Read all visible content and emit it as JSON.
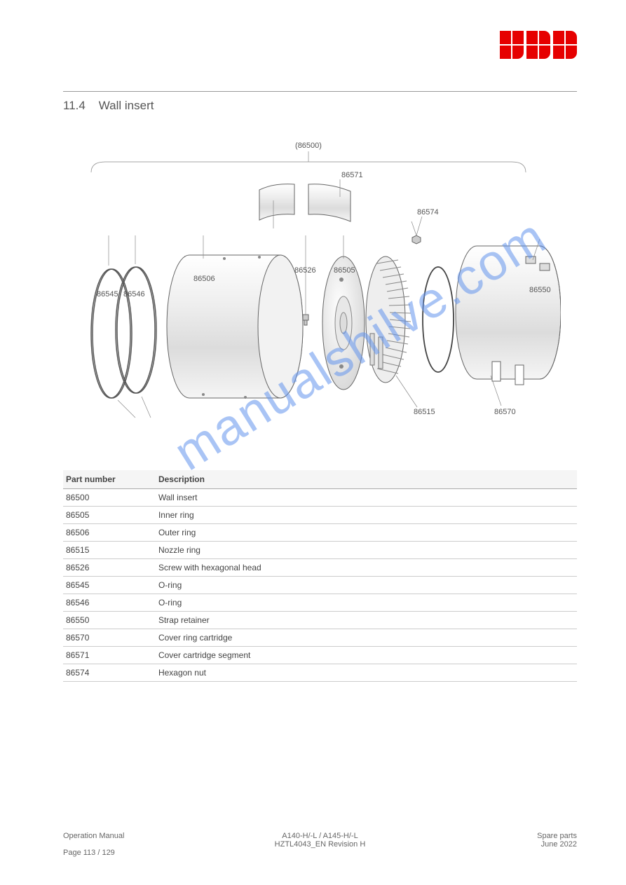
{
  "header": {
    "logo_text": "ABB",
    "logo_color": "#e60000"
  },
  "section": {
    "number": "11.4",
    "title": "Wall insert"
  },
  "diagram": {
    "watermark": "manualshilve.com",
    "callouts": {
      "group_top": "(86500)",
      "c86505": "86505",
      "c86506": "86506",
      "c86515": "86515",
      "c86526": "86526",
      "c86545": "86545",
      "c86546": "86546",
      "c86550": "86550",
      "c86570": "86570",
      "c86571": "86571",
      "c86574": "86574"
    }
  },
  "table": {
    "headers": [
      "Part number",
      "Description"
    ],
    "rows": [
      [
        "86500",
        "Wall insert"
      ],
      [
        "86505",
        "Inner ring"
      ],
      [
        "86506",
        "Outer ring"
      ],
      [
        "86515",
        "Nozzle ring"
      ],
      [
        "86526",
        "Screw with hexagonal head"
      ],
      [
        "86545",
        "O-ring"
      ],
      [
        "86546",
        "O-ring"
      ],
      [
        "86550",
        "Strap retainer"
      ],
      [
        "86570",
        "Cover ring cartridge"
      ],
      [
        "86571",
        "Cover cartridge segment"
      ],
      [
        "86574",
        "Hexagon nut"
      ]
    ]
  },
  "footer": {
    "left": "Operation Manual",
    "center_line1": "A140-H/-L / A145-H/-L",
    "center_line2": "HZTL4043_EN Revision H",
    "right_line1": "Spare parts",
    "right_line2": "June 2022",
    "page": "Page 113 / 129"
  }
}
